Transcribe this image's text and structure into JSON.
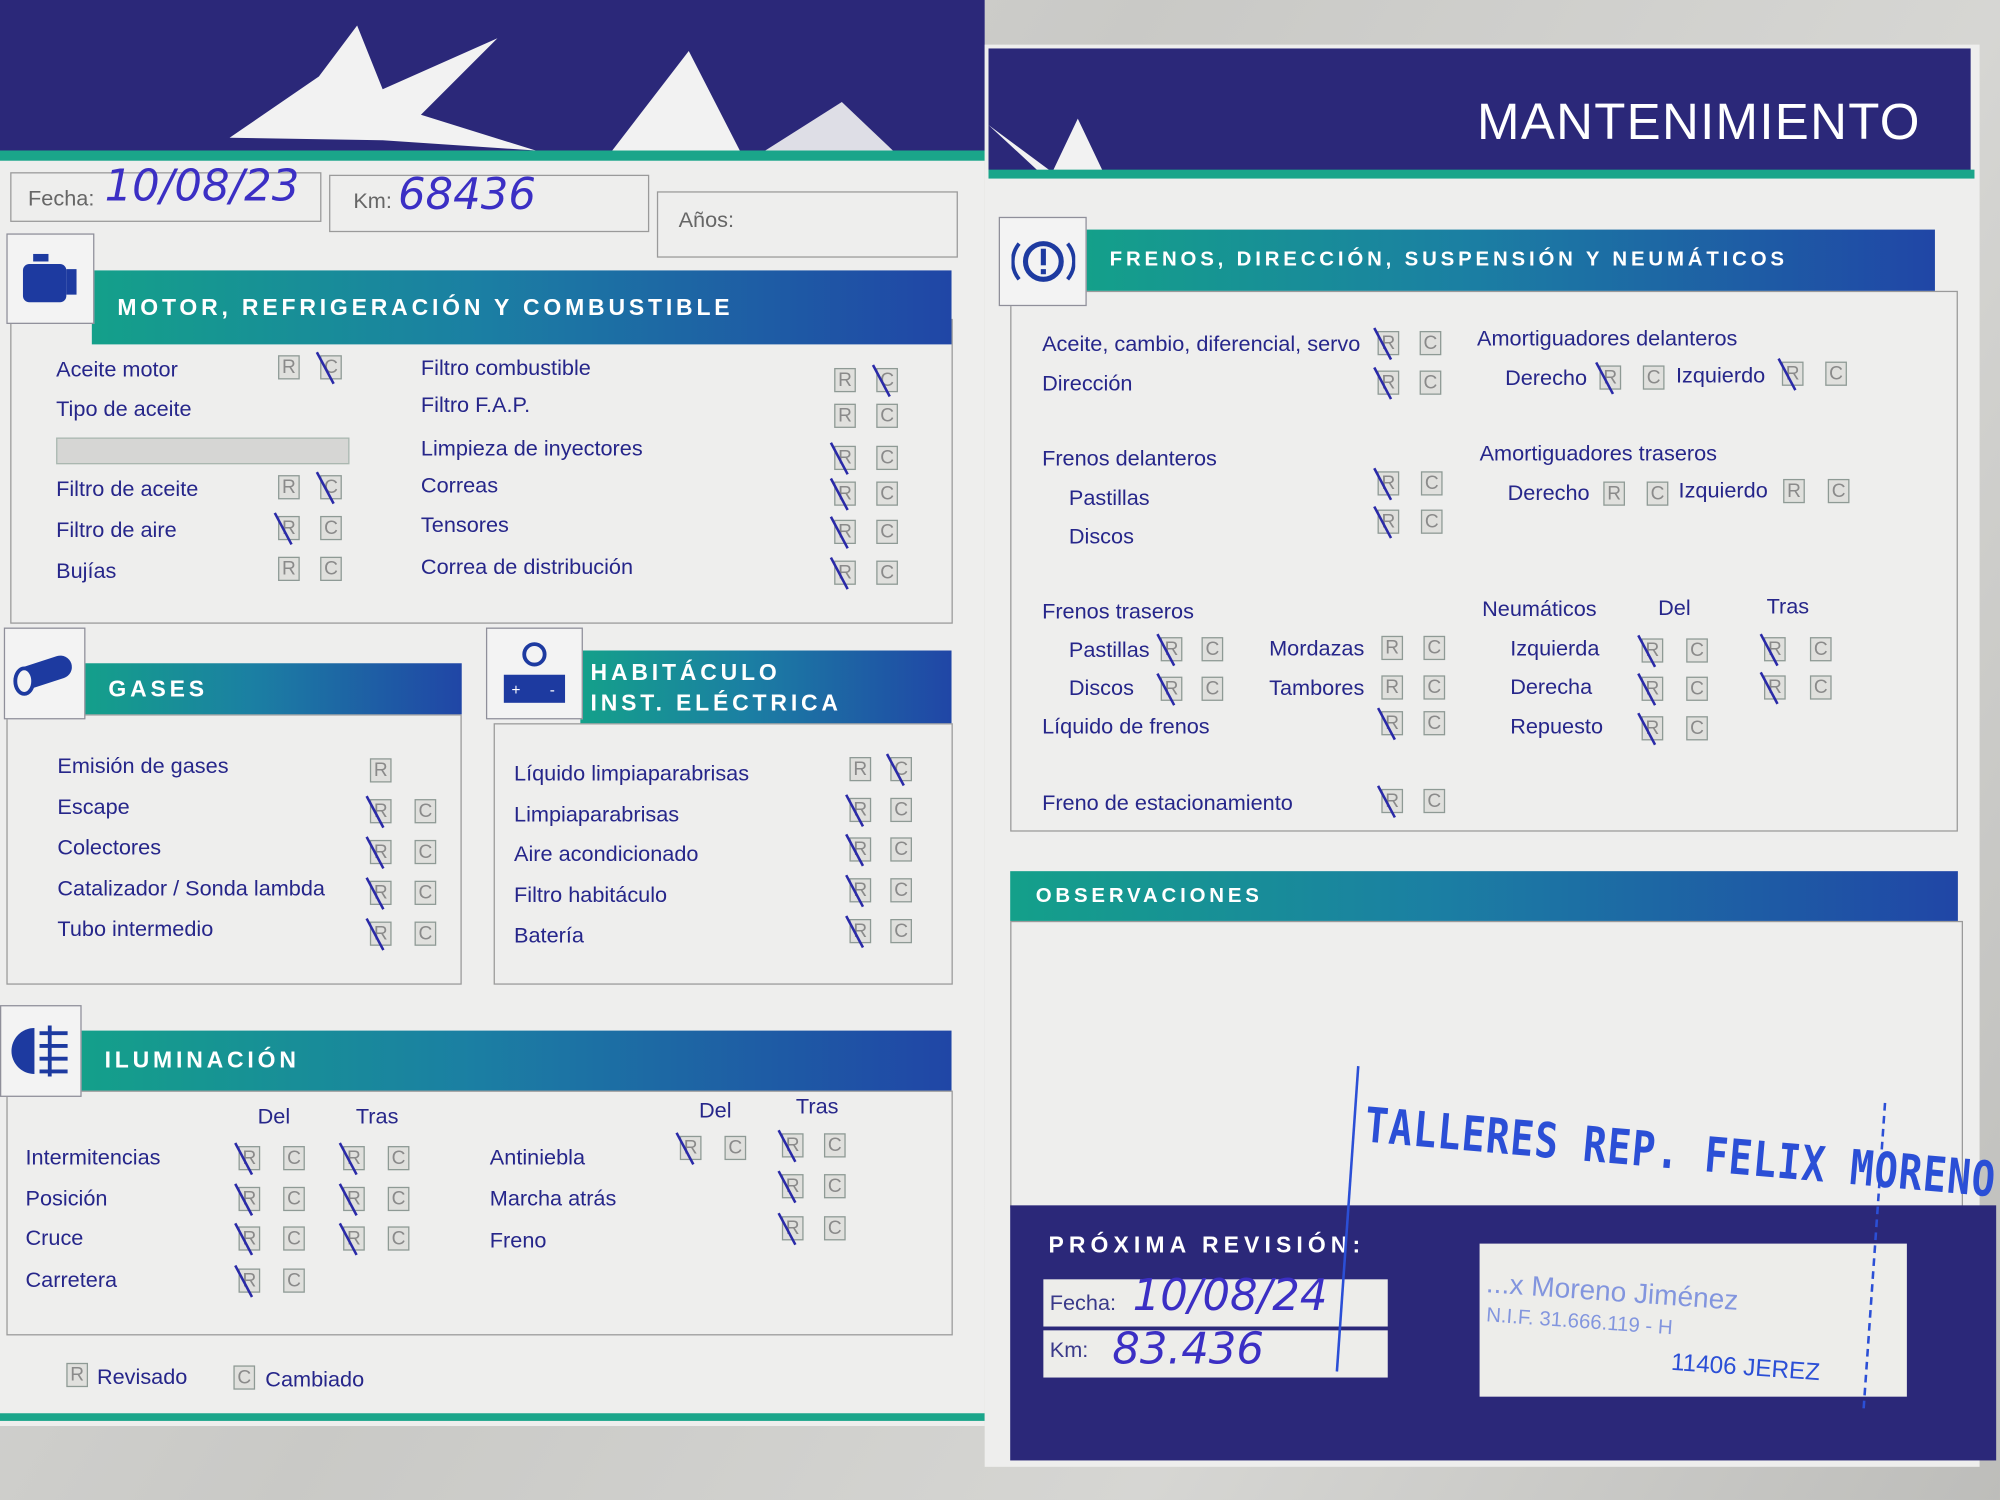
{
  "header": {
    "title": "MANTENIMIENTO"
  },
  "record": {
    "fecha_label": "Fecha:",
    "fecha_value": "10/08/23",
    "km_label": "Km:",
    "km_value": "68436",
    "anos_label": "Años:"
  },
  "motor": {
    "title": "MOTOR, REFRIGERACIÓN Y COMBUSTIBLE",
    "icon": "engine-icon",
    "tipo_aceite_label": "Tipo de aceite",
    "left": [
      {
        "label": "Aceite motor",
        "mark": "C"
      },
      {
        "label": "Filtro de aceite",
        "mark": "C"
      },
      {
        "label": "Filtro de aire",
        "mark": "R"
      },
      {
        "label": "Bujías",
        "mark": ""
      }
    ],
    "right": [
      {
        "label": "Filtro combustible",
        "mark": "C"
      },
      {
        "label": "Filtro F.A.P.",
        "mark": ""
      },
      {
        "label": "Limpieza de inyectores",
        "mark": "R"
      },
      {
        "label": "Correas",
        "mark": "R"
      },
      {
        "label": "Tensores",
        "mark": "R"
      },
      {
        "label": "Correa de distribución",
        "mark": "R"
      }
    ]
  },
  "gases": {
    "title": "GASES",
    "icon": "exhaust-pipe-icon",
    "items": [
      {
        "label": "Emisión de gases",
        "mark": "",
        "only_r": true
      },
      {
        "label": "Escape",
        "mark": "R"
      },
      {
        "label": "Colectores",
        "mark": "R"
      },
      {
        "label": "Catalizador / Sonda lambda",
        "mark": "R"
      },
      {
        "label": "Tubo intermedio",
        "mark": "R"
      }
    ]
  },
  "habitaculo": {
    "title_line1": "HABITÁCULO",
    "title_line2": "INST. ELÉCTRICA",
    "icon": "battery-icon",
    "items": [
      {
        "label": "Líquido limpiaparabrisas",
        "mark": "C"
      },
      {
        "label": "Limpiaparabrisas",
        "mark": "R"
      },
      {
        "label": "Aire acondicionado",
        "mark": "R"
      },
      {
        "label": "Filtro habitáculo",
        "mark": "R"
      },
      {
        "label": "Batería",
        "mark": "R"
      }
    ]
  },
  "iluminacion": {
    "title": "ILUMINACIÓN",
    "icon": "headlight-icon",
    "del_label": "Del",
    "tras_label": "Tras",
    "left": [
      {
        "label": "Intermitencias",
        "del": "R",
        "tras": "R"
      },
      {
        "label": "Posición",
        "del": "R",
        "tras": "R"
      },
      {
        "label": "Cruce",
        "del": "R",
        "tras": "R"
      },
      {
        "label": "Carretera",
        "del": "R",
        "tras": null
      }
    ],
    "right": [
      {
        "label": "Antiniebla",
        "del": "R",
        "tras": "R"
      },
      {
        "label": "Marcha atrás",
        "del": null,
        "tras": "R"
      },
      {
        "label": "Freno",
        "del": null,
        "tras": "R"
      }
    ]
  },
  "legend": {
    "r_letter": "R",
    "r_label": "Revisado",
    "c_letter": "C",
    "c_label": "Cambiado"
  },
  "frenos": {
    "title": "FRENOS, DIRECCIÓN, SUSPENSIÓN Y NEUMÁTICOS",
    "icon": "brake-warning-icon",
    "general": [
      {
        "label": "Aceite, cambio, diferencial, servo",
        "mark": "R"
      },
      {
        "label": "Dirección",
        "mark": "R"
      }
    ],
    "delanteros_label": "Frenos delanteros",
    "delanteros": [
      {
        "label": "Pastillas",
        "mark": "R"
      },
      {
        "label": "Discos",
        "mark": "R"
      }
    ],
    "traseros_label": "Frenos traseros",
    "traseros": [
      {
        "label": "Pastillas",
        "mark": "R"
      },
      {
        "label": "Discos",
        "mark": "R"
      },
      {
        "label": "Mordazas",
        "mark": ""
      },
      {
        "label": "Tambores",
        "mark": ""
      }
    ],
    "liquido": {
      "label": "Líquido de frenos",
      "mark": "R"
    },
    "estacionamiento": {
      "label": "Freno de estacionamiento",
      "mark": "R"
    },
    "amort_del_label": "Amortiguadores delanteros",
    "amort_del": [
      {
        "label": "Derecho",
        "mark": "R"
      },
      {
        "label": "Izquierdo",
        "mark": "R"
      }
    ],
    "amort_tras_label": "Amortiguadores traseros",
    "amort_tras": [
      {
        "label": "Derecho",
        "mark": ""
      },
      {
        "label": "Izquierdo",
        "mark": ""
      }
    ],
    "neumaticos_label": "Neumáticos",
    "del_label": "Del",
    "tras_label": "Tras",
    "neumaticos": [
      {
        "label": "Izquierda",
        "del": "R",
        "tras": "R"
      },
      {
        "label": "Derecha",
        "del": "R",
        "tras": "R"
      },
      {
        "label": "Repuesto",
        "del": "R",
        "tras": null
      }
    ]
  },
  "observaciones": {
    "title": "OBSERVACIONES"
  },
  "proxima": {
    "title": "PRÓXIMA REVISIÓN:",
    "fecha_label": "Fecha:",
    "fecha_value": "10/08/24",
    "km_label": "Km:",
    "km_value": "83.436"
  },
  "stamp": {
    "workshop": "TALLERES REP. FELIX MORENO",
    "owner": "...x Moreno Jiménez",
    "nif": "N.I.F. 31.666.119 - H",
    "city": "11406 JEREZ"
  },
  "colors": {
    "navy": "#2b2879",
    "teal": "#1aa58a",
    "blue": "#2046a6",
    "ink": "#3b2fc4",
    "stamp": "#2b4fd6"
  }
}
